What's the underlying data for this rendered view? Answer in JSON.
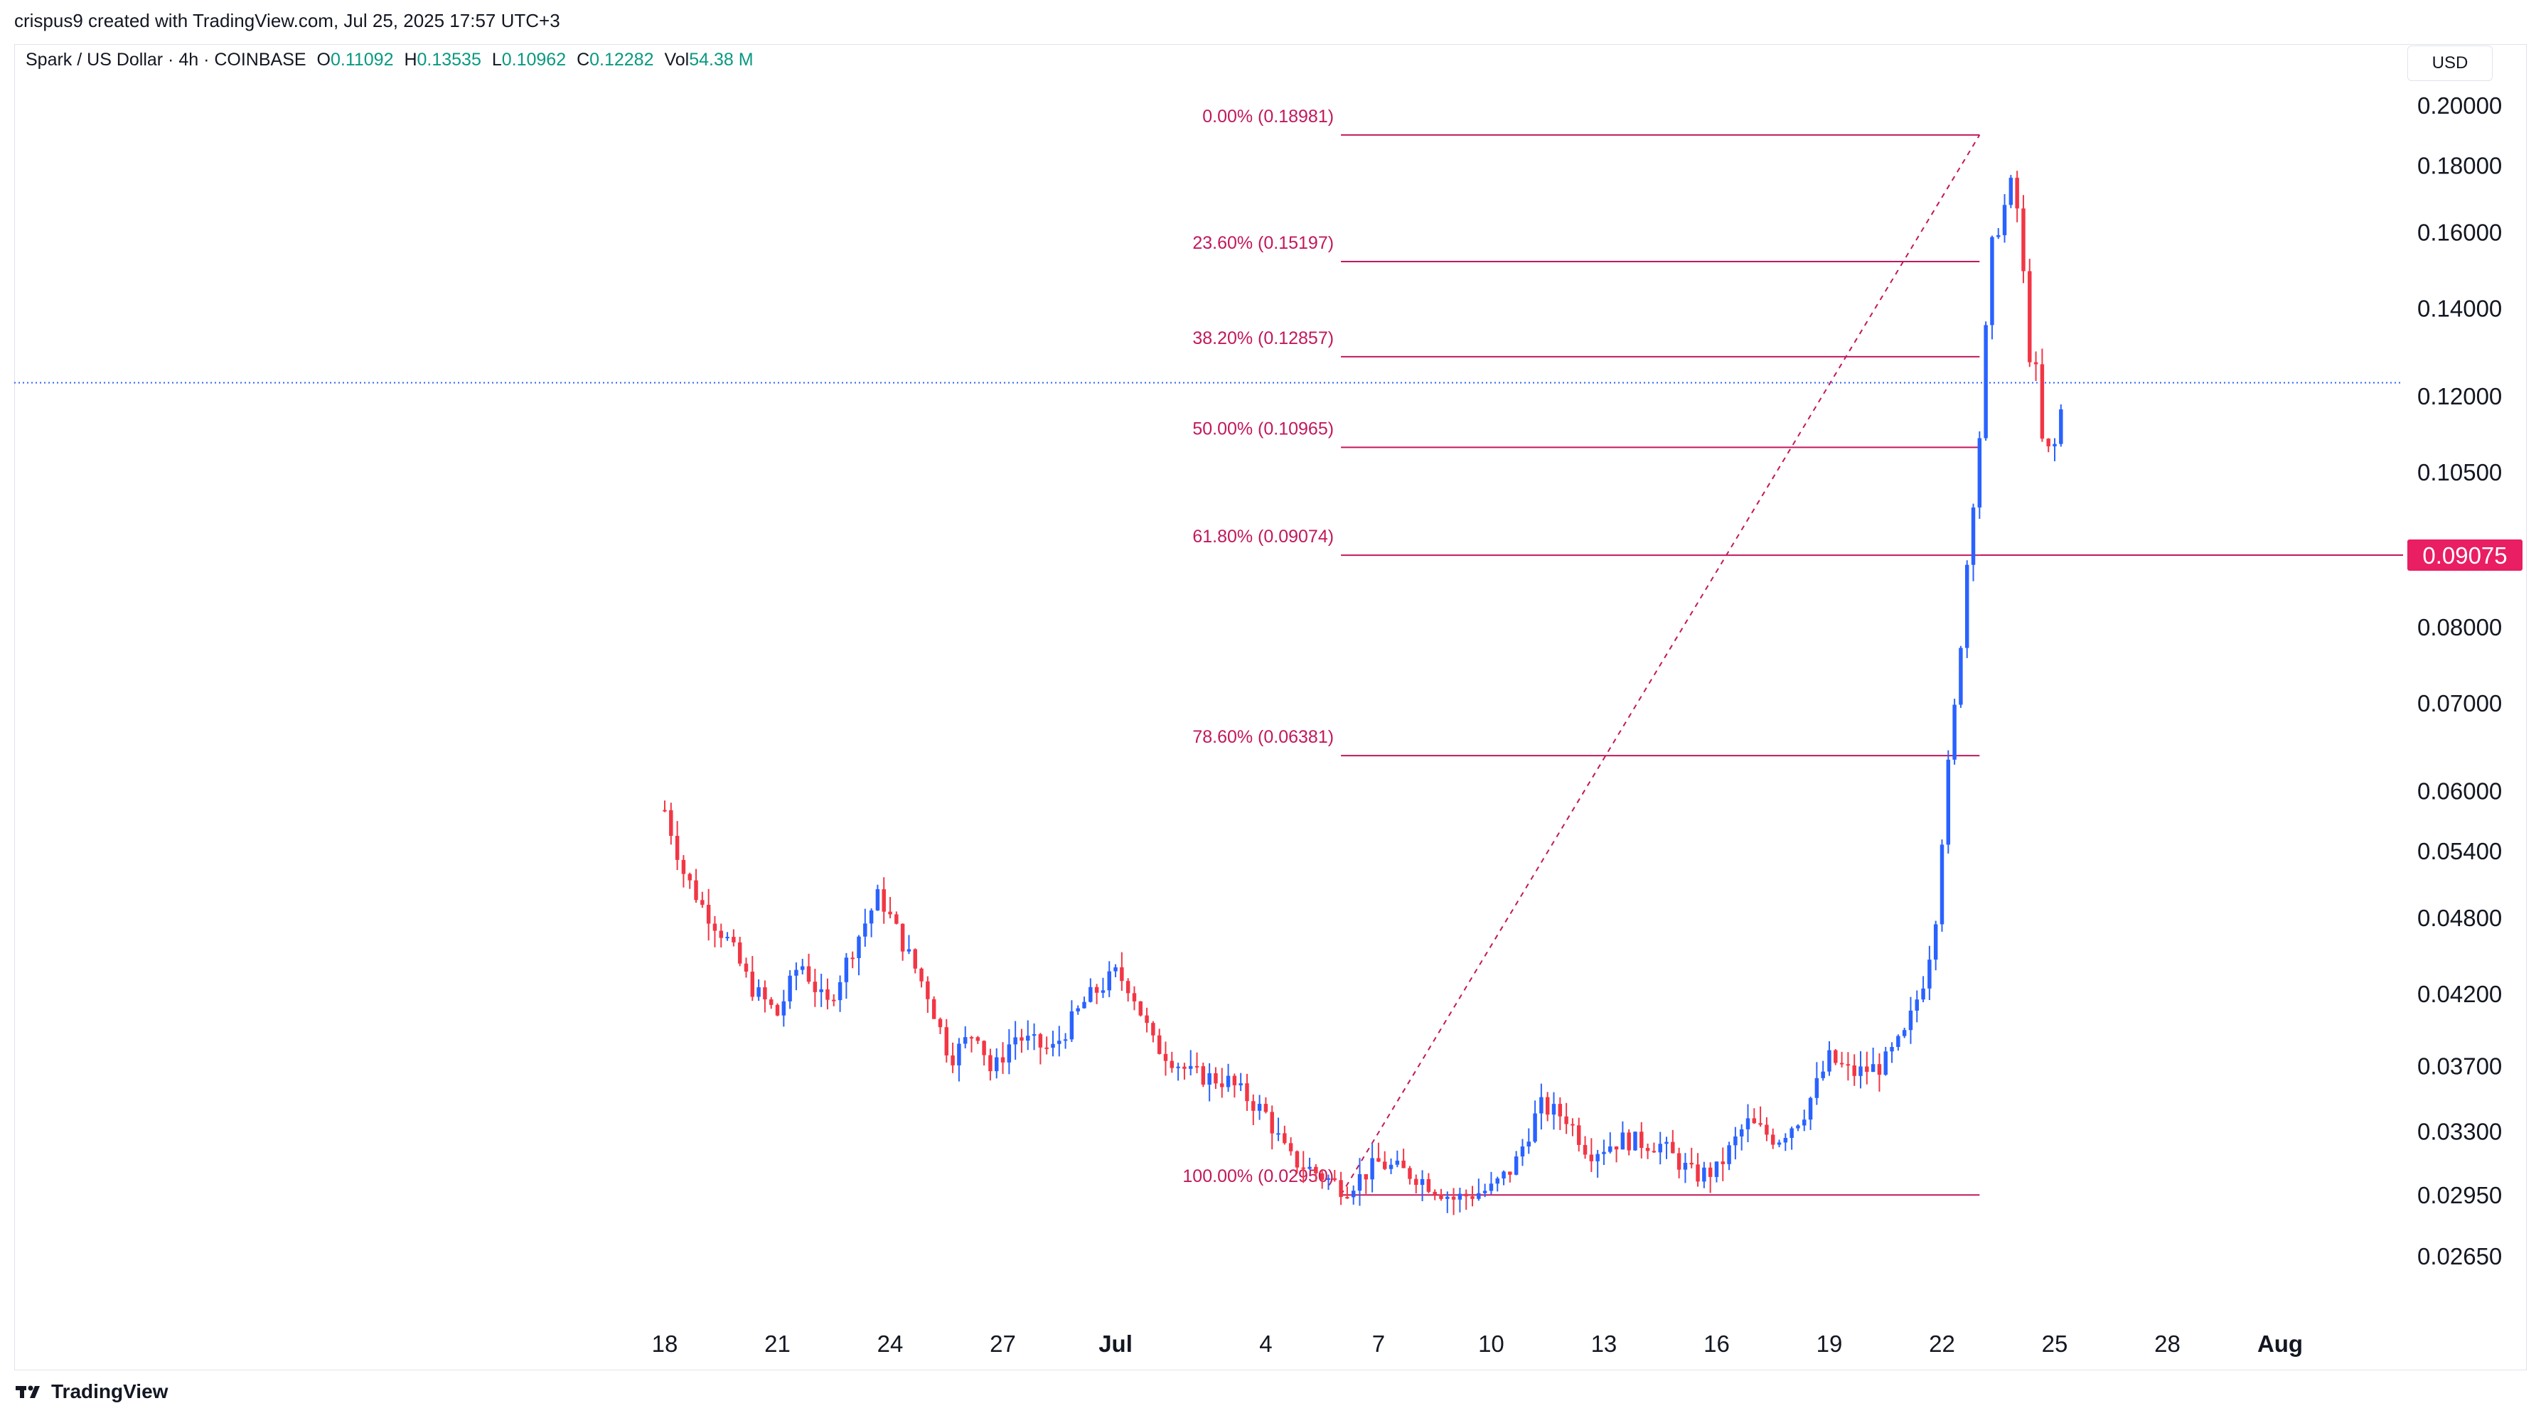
{
  "header": {
    "attribution": "crispus9 created with TradingView.com, Jul 25, 2025 17:57 UTC+3"
  },
  "legend": {
    "symbol": "Spark / US Dollar · 4h · COINBASE",
    "open_label": "O",
    "open": "0.11092",
    "high_label": "H",
    "high": "0.13535",
    "low_label": "L",
    "low": "0.10962",
    "close_label": "C",
    "close": "0.12282",
    "vol_label": "Vol",
    "vol": "54.38 M"
  },
  "currency_button": "USD",
  "footer": {
    "brand": "TradingView"
  },
  "colors": {
    "up": "#2962ff",
    "down": "#f23645",
    "fib": "#c2185b",
    "price_line": "#2962ff"
  },
  "chart_data": {
    "type": "candlestick",
    "title": "Spark / US Dollar · 4h · COINBASE",
    "y_scale": "log",
    "ylim": [
      0.0245,
      0.215
    ],
    "x_range": [
      "Jun 15",
      "Aug 3"
    ],
    "x_ticks": [
      "18",
      "21",
      "24",
      "27",
      "Jul",
      "4",
      "7",
      "10",
      "13",
      "16",
      "19",
      "22",
      "25",
      "28",
      "Aug"
    ],
    "y_ticks": [
      "0.20000",
      "0.18000",
      "0.16000",
      "0.14000",
      "0.12000",
      "0.10500",
      "0.08000",
      "0.07000",
      "0.06000",
      "0.05400",
      "0.04800",
      "0.04200",
      "0.03700",
      "0.03300",
      "0.02950",
      "0.02650"
    ],
    "current_price_line": 0.12282,
    "highlight_price": "0.09075",
    "fibonacci": {
      "from": [
        "Jul 6",
        0.0295
      ],
      "to": [
        "Jul 23",
        0.18981
      ],
      "levels": [
        {
          "label": "0.00% (0.18981)",
          "value": 0.18981
        },
        {
          "label": "23.60% (0.15197)",
          "value": 0.15197
        },
        {
          "label": "38.20% (0.12857)",
          "value": 0.12857
        },
        {
          "label": "50.00% (0.10965)",
          "value": 0.10965
        },
        {
          "label": "61.80% (0.09074)",
          "value": 0.09074
        },
        {
          "label": "78.60% (0.06381)",
          "value": 0.06381
        },
        {
          "label": "100.00% (0.02950)",
          "value": 0.0295
        }
      ]
    },
    "series_anchors": [
      [
        "Jun 18",
        0.058
      ],
      [
        "Jun 18.5",
        0.052
      ],
      [
        "Jun 19",
        0.049
      ],
      [
        "Jun 19.7",
        0.046
      ],
      [
        "Jun 20.3",
        0.0425
      ],
      [
        "Jun 21",
        0.0405
      ],
      [
        "Jun 21.6",
        0.0445
      ],
      [
        "Jun 22.3",
        0.041
      ],
      [
        "Jun 23",
        0.0455
      ],
      [
        "Jun 23.7",
        0.05
      ],
      [
        "Jun 24.4",
        0.0455
      ],
      [
        "Jun 25",
        0.042
      ],
      [
        "Jun 25.6",
        0.0375
      ],
      [
        "Jun 26.3",
        0.0395
      ],
      [
        "Jun 26.7",
        0.0365
      ],
      [
        "Jun 27.3",
        0.039
      ],
      [
        "Jun 28.3",
        0.038
      ],
      [
        "Jun 29.2",
        0.0415
      ],
      [
        "Jun 30",
        0.0435
      ],
      [
        "Jul 0.4",
        0.0425
      ],
      [
        "Jul 1",
        0.0385
      ],
      [
        "Jul 2",
        0.0365
      ],
      [
        "Jul 3",
        0.036
      ],
      [
        "Jul 4",
        0.034
      ],
      [
        "Jul 4.6",
        0.0315
      ],
      [
        "Jul 5.5",
        0.0305
      ],
      [
        "Jul 6.1",
        0.0298
      ],
      [
        "Jul 7",
        0.0312
      ],
      [
        "Jul 8",
        0.0305
      ],
      [
        "Jul 9",
        0.0293
      ],
      [
        "Jul 10",
        0.0298
      ],
      [
        "Jul 10.6",
        0.031
      ],
      [
        "Jul 11.3",
        0.0345
      ],
      [
        "Jul 12",
        0.0338
      ],
      [
        "Jul 12.6",
        0.0318
      ],
      [
        "Jul 13.5",
        0.0325
      ],
      [
        "Jul 14.5",
        0.0322
      ],
      [
        "Jul 15.4",
        0.0305
      ],
      [
        "Jul 16",
        0.0308
      ],
      [
        "Jul 16.8",
        0.0335
      ],
      [
        "Jul 17.6",
        0.0325
      ],
      [
        "Jul 18.3",
        0.034
      ],
      [
        "Jul 19",
        0.0375
      ],
      [
        "Jul 19.6",
        0.0365
      ],
      [
        "Jul 20.4",
        0.037
      ],
      [
        "Jul 21",
        0.039
      ],
      [
        "Jul 21.5",
        0.043
      ],
      [
        "Jul 21.8",
        0.047
      ],
      [
        "Jul 22.1",
        0.06
      ],
      [
        "Jul 22.4",
        0.072
      ],
      [
        "Jul 22.7",
        0.092
      ],
      [
        "Jul 23",
        0.112
      ],
      [
        "Jul 23.3",
        0.155
      ],
      [
        "Jul 23.6",
        0.165
      ],
      [
        "Jul 23.9",
        0.176
      ],
      [
        "Jul 24.1",
        0.158
      ],
      [
        "Jul 24.3",
        0.13
      ],
      [
        "Jul 24.5",
        0.125
      ],
      [
        "Jul 24.7",
        0.108
      ],
      [
        "Jul 25",
        0.11
      ],
      [
        "Jul 25.3",
        0.1228
      ]
    ]
  }
}
